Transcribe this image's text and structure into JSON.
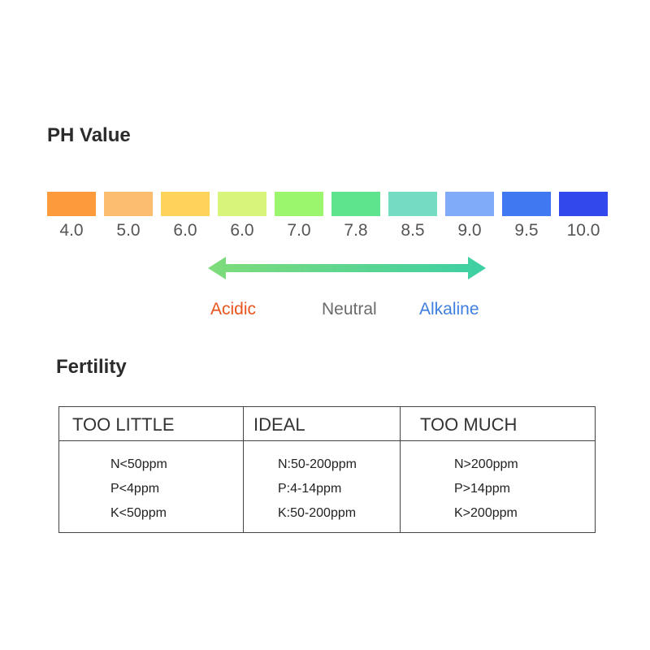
{
  "ph_section": {
    "title": "PH Value",
    "swatches": [
      {
        "label": "4.0",
        "color": "#fd9a3c"
      },
      {
        "label": "5.0",
        "color": "#fdbd6f"
      },
      {
        "label": "6.0",
        "color": "#fed35c"
      },
      {
        "label": "6.0",
        "color": "#d6f57a"
      },
      {
        "label": "7.0",
        "color": "#9bf56d"
      },
      {
        "label": "7.8",
        "color": "#5de48c"
      },
      {
        "label": "8.5",
        "color": "#74dcc1"
      },
      {
        "label": "9.0",
        "color": "#80abf8"
      },
      {
        "label": "9.5",
        "color": "#3f78f0"
      },
      {
        "label": "10.0",
        "color": "#3248ec"
      }
    ],
    "arrow_colors": {
      "start": "#7fdc7a",
      "end": "#3ccfa4"
    },
    "scale_labels": {
      "acidic": "Acidic",
      "neutral": "Neutral",
      "alkaline": "Alkaline"
    }
  },
  "fertility_section": {
    "title": "Fertility",
    "columns": [
      {
        "header": "TOO LITTLE",
        "lines": [
          "N<50ppm",
          "P<4ppm",
          "K<50ppm"
        ]
      },
      {
        "header": "IDEAL",
        "lines": [
          "N:50-200ppm",
          "P:4-14ppm",
          "K:50-200ppm"
        ]
      },
      {
        "header": "TOO MUCH",
        "lines": [
          "N>200ppm",
          "P>14ppm",
          "K>200ppm"
        ]
      }
    ]
  }
}
